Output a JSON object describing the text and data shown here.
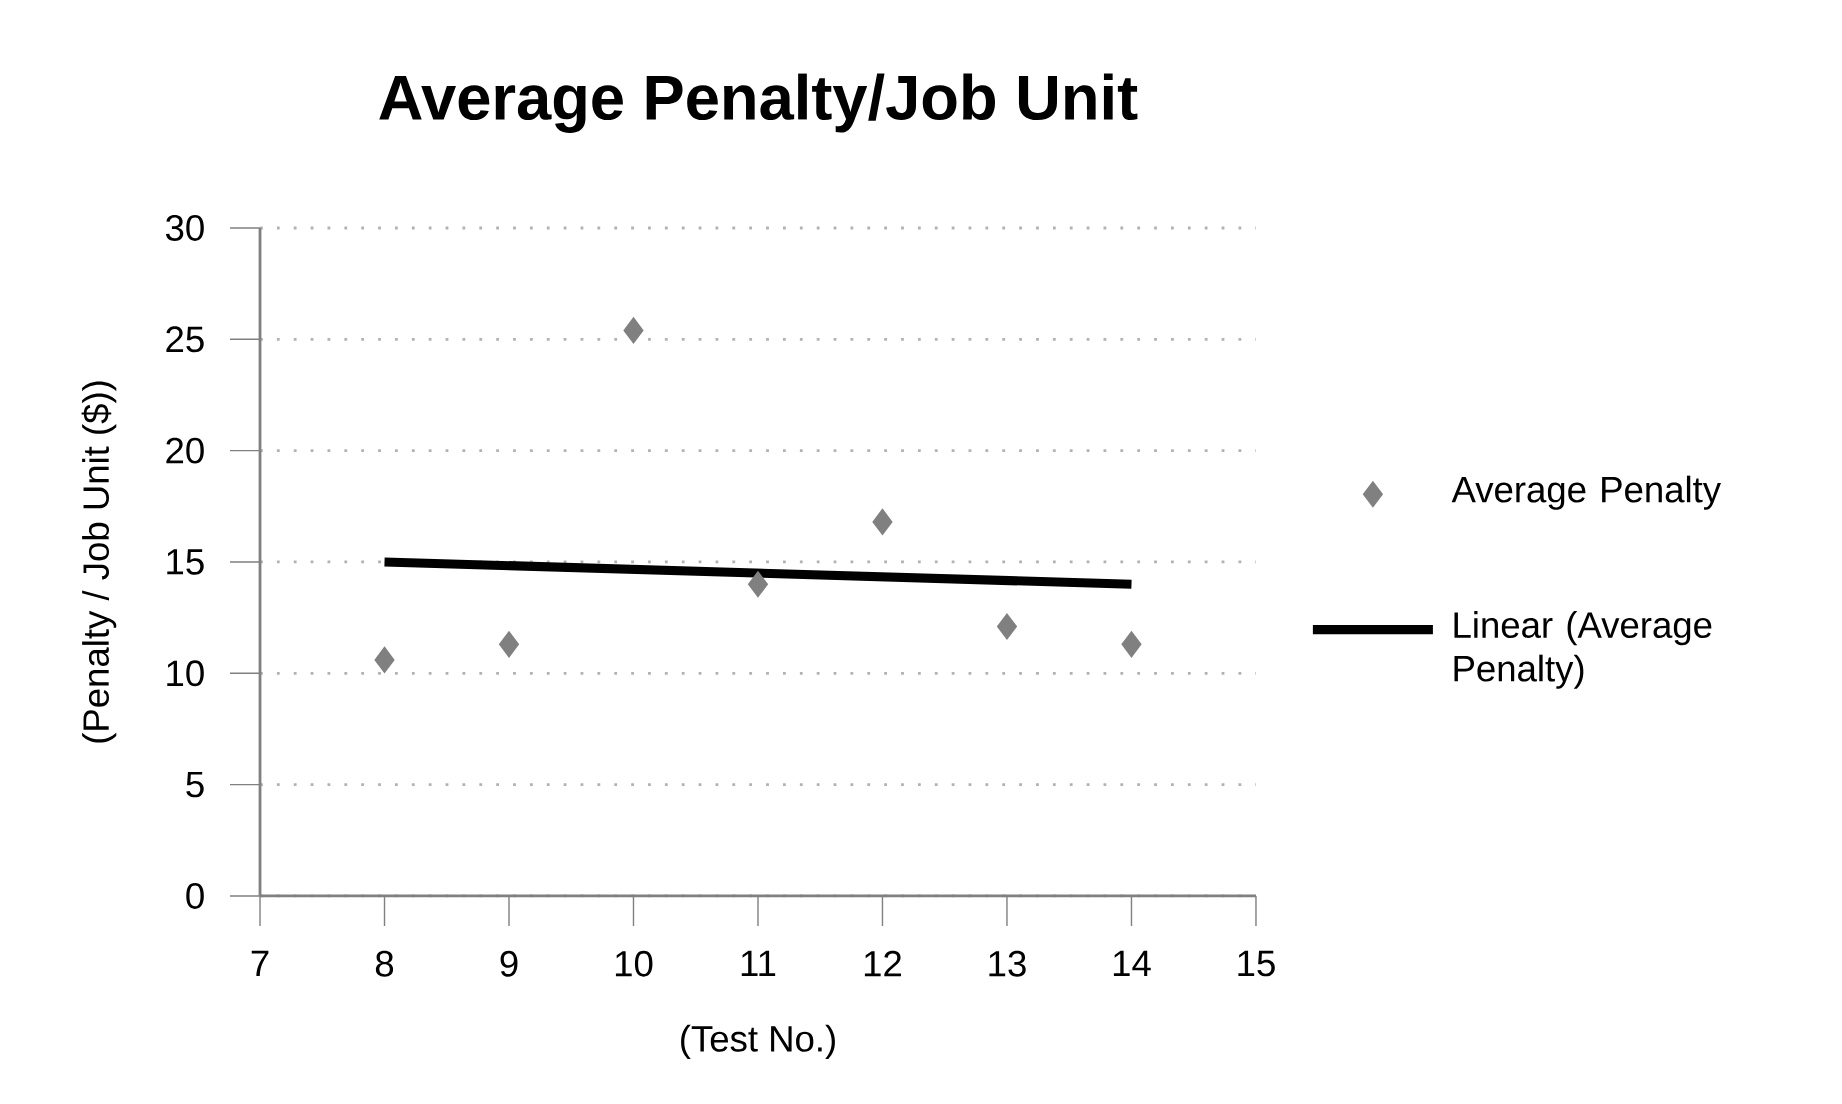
{
  "chart_data": {
    "type": "scatter",
    "title": "Average Penalty/Job Unit",
    "xlabel": "(Test No.)",
    "ylabel": "(Penalty / Job Unit ($))",
    "series": [
      {
        "name": "Average Penalty",
        "color": "#808080",
        "marker": "diamond",
        "x": [
          8,
          9,
          10,
          11,
          12,
          13,
          14
        ],
        "values": [
          10.6,
          11.3,
          25.4,
          14.0,
          16.8,
          12.1,
          11.3
        ]
      },
      {
        "name": "Linear (Average Penalty)",
        "type": "line",
        "color": "#000000",
        "marker": "none",
        "line_style": "solid",
        "x": [
          8,
          14
        ],
        "values": [
          15.0,
          14.0
        ]
      }
    ],
    "xlim": [
      7,
      15
    ],
    "xticks": [
      7,
      8,
      9,
      10,
      11,
      12,
      13,
      14,
      15
    ],
    "ylim": [
      0,
      30
    ],
    "yticks": [
      0,
      5,
      10,
      15,
      20,
      25,
      30
    ],
    "grid": "y",
    "legend": "right"
  }
}
